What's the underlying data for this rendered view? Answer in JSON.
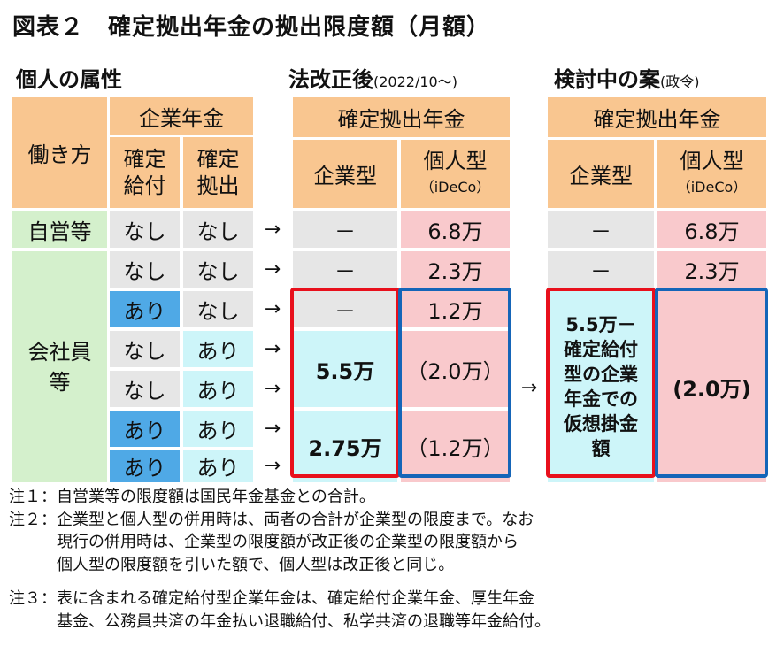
{
  "title": "図表２　確定拠出年金の拠出限度額（月額）",
  "attr_section": "個人の属性",
  "law_section": {
    "main": "法改正後",
    "sub": "(2022/10～)"
  },
  "plan_section": {
    "main": "検討中の案",
    "sub": "(政令)"
  },
  "headers": {
    "work_style": "働き方",
    "corp_pension": "企業年金",
    "db": [
      "確定",
      "給付"
    ],
    "dc": [
      "確定",
      "拠出"
    ],
    "dc_group": "確定拠出年金",
    "corp_type": "企業型",
    "ind_type": [
      "個人型",
      "（iDeCo）"
    ]
  },
  "rows": {
    "self_employed": "自営等",
    "employee": [
      "会社員",
      "等"
    ],
    "nashi": "なし",
    "ari": "あり",
    "arrow": "→",
    "dash": "－"
  },
  "values": {
    "r1_ind": "6.8万",
    "r2_ind": "2.3万",
    "r3_ind": "1.2万",
    "corp_55": "5.5万",
    "corp_275": "2.75万",
    "ind_20": "（2.0万）",
    "ind_12": "（1.2万）",
    "plan_r1_ind": "6.8万",
    "plan_r2_ind": "2.3万",
    "plan_corp": [
      "5.5万－",
      "確定給付",
      "型の企業",
      "年金での",
      "仮想掛金",
      "額"
    ],
    "plan_ind": "(2.0万)"
  },
  "notes": [
    "注１：自営業等の限度額は国民年金基金との合計。",
    "注２：企業型と個人型の併用時は、両者の合計が企業型の限度まで。なお",
    "現行の併用時は、企業型の限度額が改正後の企業型の限度額から",
    "個人型の限度額を引いた額で、個人型は改正後と同じ。",
    "注３：表に含まれる確定給付型企業年金は、確定給付企業年金、厚生年金",
    "基金、公務員共済の年金払い退職給付、私学共済の退職等年金給付。"
  ],
  "colors": {
    "header": "#f9c690",
    "self_employed": "#d4f0cc",
    "gray": "#e6e6e6",
    "pink": "#f9c9cc",
    "cyan": "#cdf5f9",
    "blue_ari": "#4fa9e6",
    "red_border": "#e8101c",
    "blue_border": "#1565b8"
  }
}
